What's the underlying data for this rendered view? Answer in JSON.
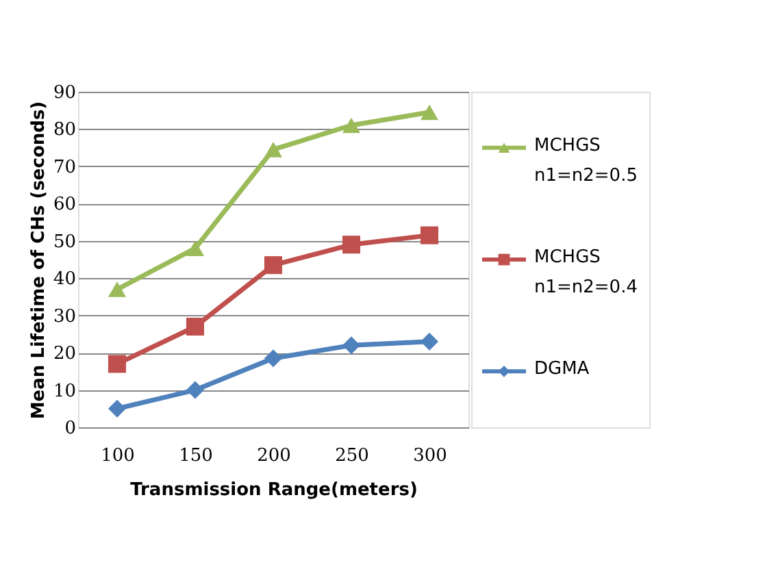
{
  "chart_data": {
    "type": "line",
    "xlabel": "Transmission Range(meters)",
    "ylabel": "Mean Lifetime of CHs (seconds)",
    "categories": [
      "100",
      "150",
      "200",
      "250",
      "300"
    ],
    "series": [
      {
        "name": "MCHGS n1=n2=0.5",
        "color": "#9bbb59",
        "marker": "triangle",
        "values": [
          37,
          48,
          74.5,
          81,
          84.5
        ]
      },
      {
        "name": "MCHGS n1=n2=0.4",
        "color": "#c0504d",
        "marker": "square",
        "values": [
          17,
          27,
          43.5,
          49,
          51.5
        ]
      },
      {
        "name": "DGMA",
        "color": "#4f81bd",
        "marker": "diamond",
        "values": [
          5,
          10,
          18.5,
          22,
          23
        ]
      }
    ],
    "ylim": [
      0,
      90
    ],
    "yticks": [
      0,
      10,
      20,
      30,
      40,
      50,
      60,
      70,
      80,
      90
    ],
    "grid": "y",
    "legend": "right",
    "line_style": "solid"
  }
}
